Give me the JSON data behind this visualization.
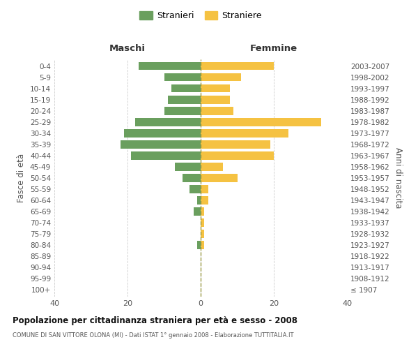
{
  "age_groups": [
    "100+",
    "95-99",
    "90-94",
    "85-89",
    "80-84",
    "75-79",
    "70-74",
    "65-69",
    "60-64",
    "55-59",
    "50-54",
    "45-49",
    "40-44",
    "35-39",
    "30-34",
    "25-29",
    "20-24",
    "15-19",
    "10-14",
    "5-9",
    "0-4"
  ],
  "birth_years": [
    "≤ 1907",
    "1908-1912",
    "1913-1917",
    "1918-1922",
    "1923-1927",
    "1928-1932",
    "1933-1937",
    "1938-1942",
    "1943-1947",
    "1948-1952",
    "1953-1957",
    "1958-1962",
    "1963-1967",
    "1968-1972",
    "1973-1977",
    "1978-1982",
    "1983-1987",
    "1988-1992",
    "1993-1997",
    "1998-2002",
    "2003-2007"
  ],
  "maschi": [
    0,
    0,
    0,
    0,
    1,
    0,
    0,
    2,
    1,
    3,
    5,
    7,
    19,
    22,
    21,
    18,
    10,
    9,
    8,
    10,
    17
  ],
  "femmine": [
    0,
    0,
    0,
    0,
    1,
    1,
    1,
    1,
    2,
    2,
    10,
    6,
    20,
    19,
    24,
    33,
    9,
    8,
    8,
    11,
    20
  ],
  "color_maschi": "#6a9f5e",
  "color_femmine": "#f5c242",
  "title": "Popolazione per cittadinanza straniera per età e sesso - 2008",
  "subtitle": "COMUNE DI SAN VITTORE OLONA (MI) - Dati ISTAT 1° gennaio 2008 - Elaborazione TUTTITALIA.IT",
  "xlabel_left": "Maschi",
  "xlabel_right": "Femmine",
  "ylabel_left": "Fasce di età",
  "ylabel_right": "Anni di nascita",
  "legend_maschi": "Stranieri",
  "legend_femmine": "Straniere",
  "xlim": 40,
  "background_color": "#ffffff",
  "grid_color": "#cccccc"
}
